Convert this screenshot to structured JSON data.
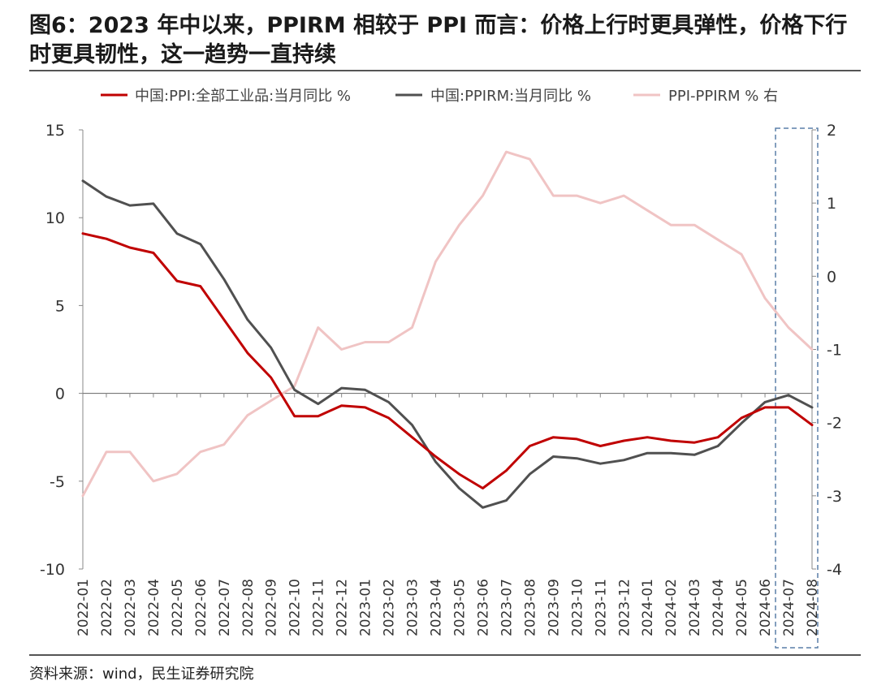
{
  "title": "图6：2023 年中以来，PPIRM 相较于 PPI 而言：价格上行时更具弹性，价格下行时更具韧性，这一趋势一直持续",
  "source": "资料来源：wind，民生证券研究院",
  "chart_data": {
    "type": "line",
    "categories": [
      "2022-01",
      "2022-02",
      "2022-03",
      "2022-04",
      "2022-05",
      "2022-06",
      "2022-07",
      "2022-08",
      "2022-09",
      "2022-10",
      "2022-11",
      "2022-12",
      "2023-01",
      "2023-02",
      "2023-03",
      "2023-04",
      "2023-05",
      "2023-06",
      "2023-07",
      "2023-08",
      "2023-09",
      "2023-10",
      "2023-11",
      "2023-12",
      "2024-01",
      "2024-02",
      "2024-03",
      "2024-04",
      "2024-05",
      "2024-06",
      "2024-07",
      "2024-08"
    ],
    "series": [
      {
        "name": "中国:PPI:全部工业品:当月同比 %",
        "axis": "left",
        "color": "#c00000",
        "values": [
          9.1,
          8.8,
          8.3,
          8.0,
          6.4,
          6.1,
          4.2,
          2.3,
          0.9,
          -1.3,
          -1.3,
          -0.7,
          -0.8,
          -1.4,
          -2.5,
          -3.6,
          -4.6,
          -5.4,
          -4.4,
          -3.0,
          -2.5,
          -2.6,
          -3.0,
          -2.7,
          -2.5,
          -2.7,
          -2.8,
          -2.5,
          -1.4,
          -0.8,
          -0.8,
          -1.8
        ]
      },
      {
        "name": "中国:PPIRM:当月同比 %",
        "axis": "left",
        "color": "#505050",
        "values": [
          12.1,
          11.2,
          10.7,
          10.8,
          9.1,
          8.5,
          6.5,
          4.2,
          2.6,
          0.2,
          -0.6,
          0.3,
          0.2,
          -0.5,
          -1.8,
          -3.9,
          -5.4,
          -6.5,
          -6.1,
          -4.6,
          -3.6,
          -3.7,
          -4.0,
          -3.8,
          -3.4,
          -3.4,
          -3.5,
          -3.0,
          -1.7,
          -0.5,
          -0.1,
          -0.8
        ]
      },
      {
        "name": "PPI-PPIRM % 右",
        "axis": "right",
        "color": "#f0c4c4",
        "values": [
          -3.0,
          -2.4,
          -2.4,
          -2.8,
          -2.7,
          -2.4,
          -2.3,
          -1.9,
          -1.7,
          -1.5,
          -0.7,
          -1.0,
          -0.9,
          -0.9,
          -0.7,
          0.2,
          0.7,
          1.1,
          1.7,
          1.6,
          1.1,
          1.1,
          1.0,
          1.1,
          0.9,
          0.7,
          0.7,
          0.5,
          0.3,
          -0.3,
          -0.7,
          -1.0
        ]
      }
    ],
    "left_axis": {
      "min": -10,
      "max": 15,
      "ticks": [
        "15",
        "10",
        "5",
        "0",
        "-5",
        "-10"
      ]
    },
    "right_axis": {
      "min": -4,
      "max": 2,
      "ticks": [
        "2",
        "1",
        "0",
        "-1",
        "-2",
        "-3",
        "-4"
      ]
    },
    "grid": false,
    "legend": "top",
    "highlight": {
      "from": "2024-07",
      "to": "2024-08",
      "style": "dashed-box"
    }
  }
}
